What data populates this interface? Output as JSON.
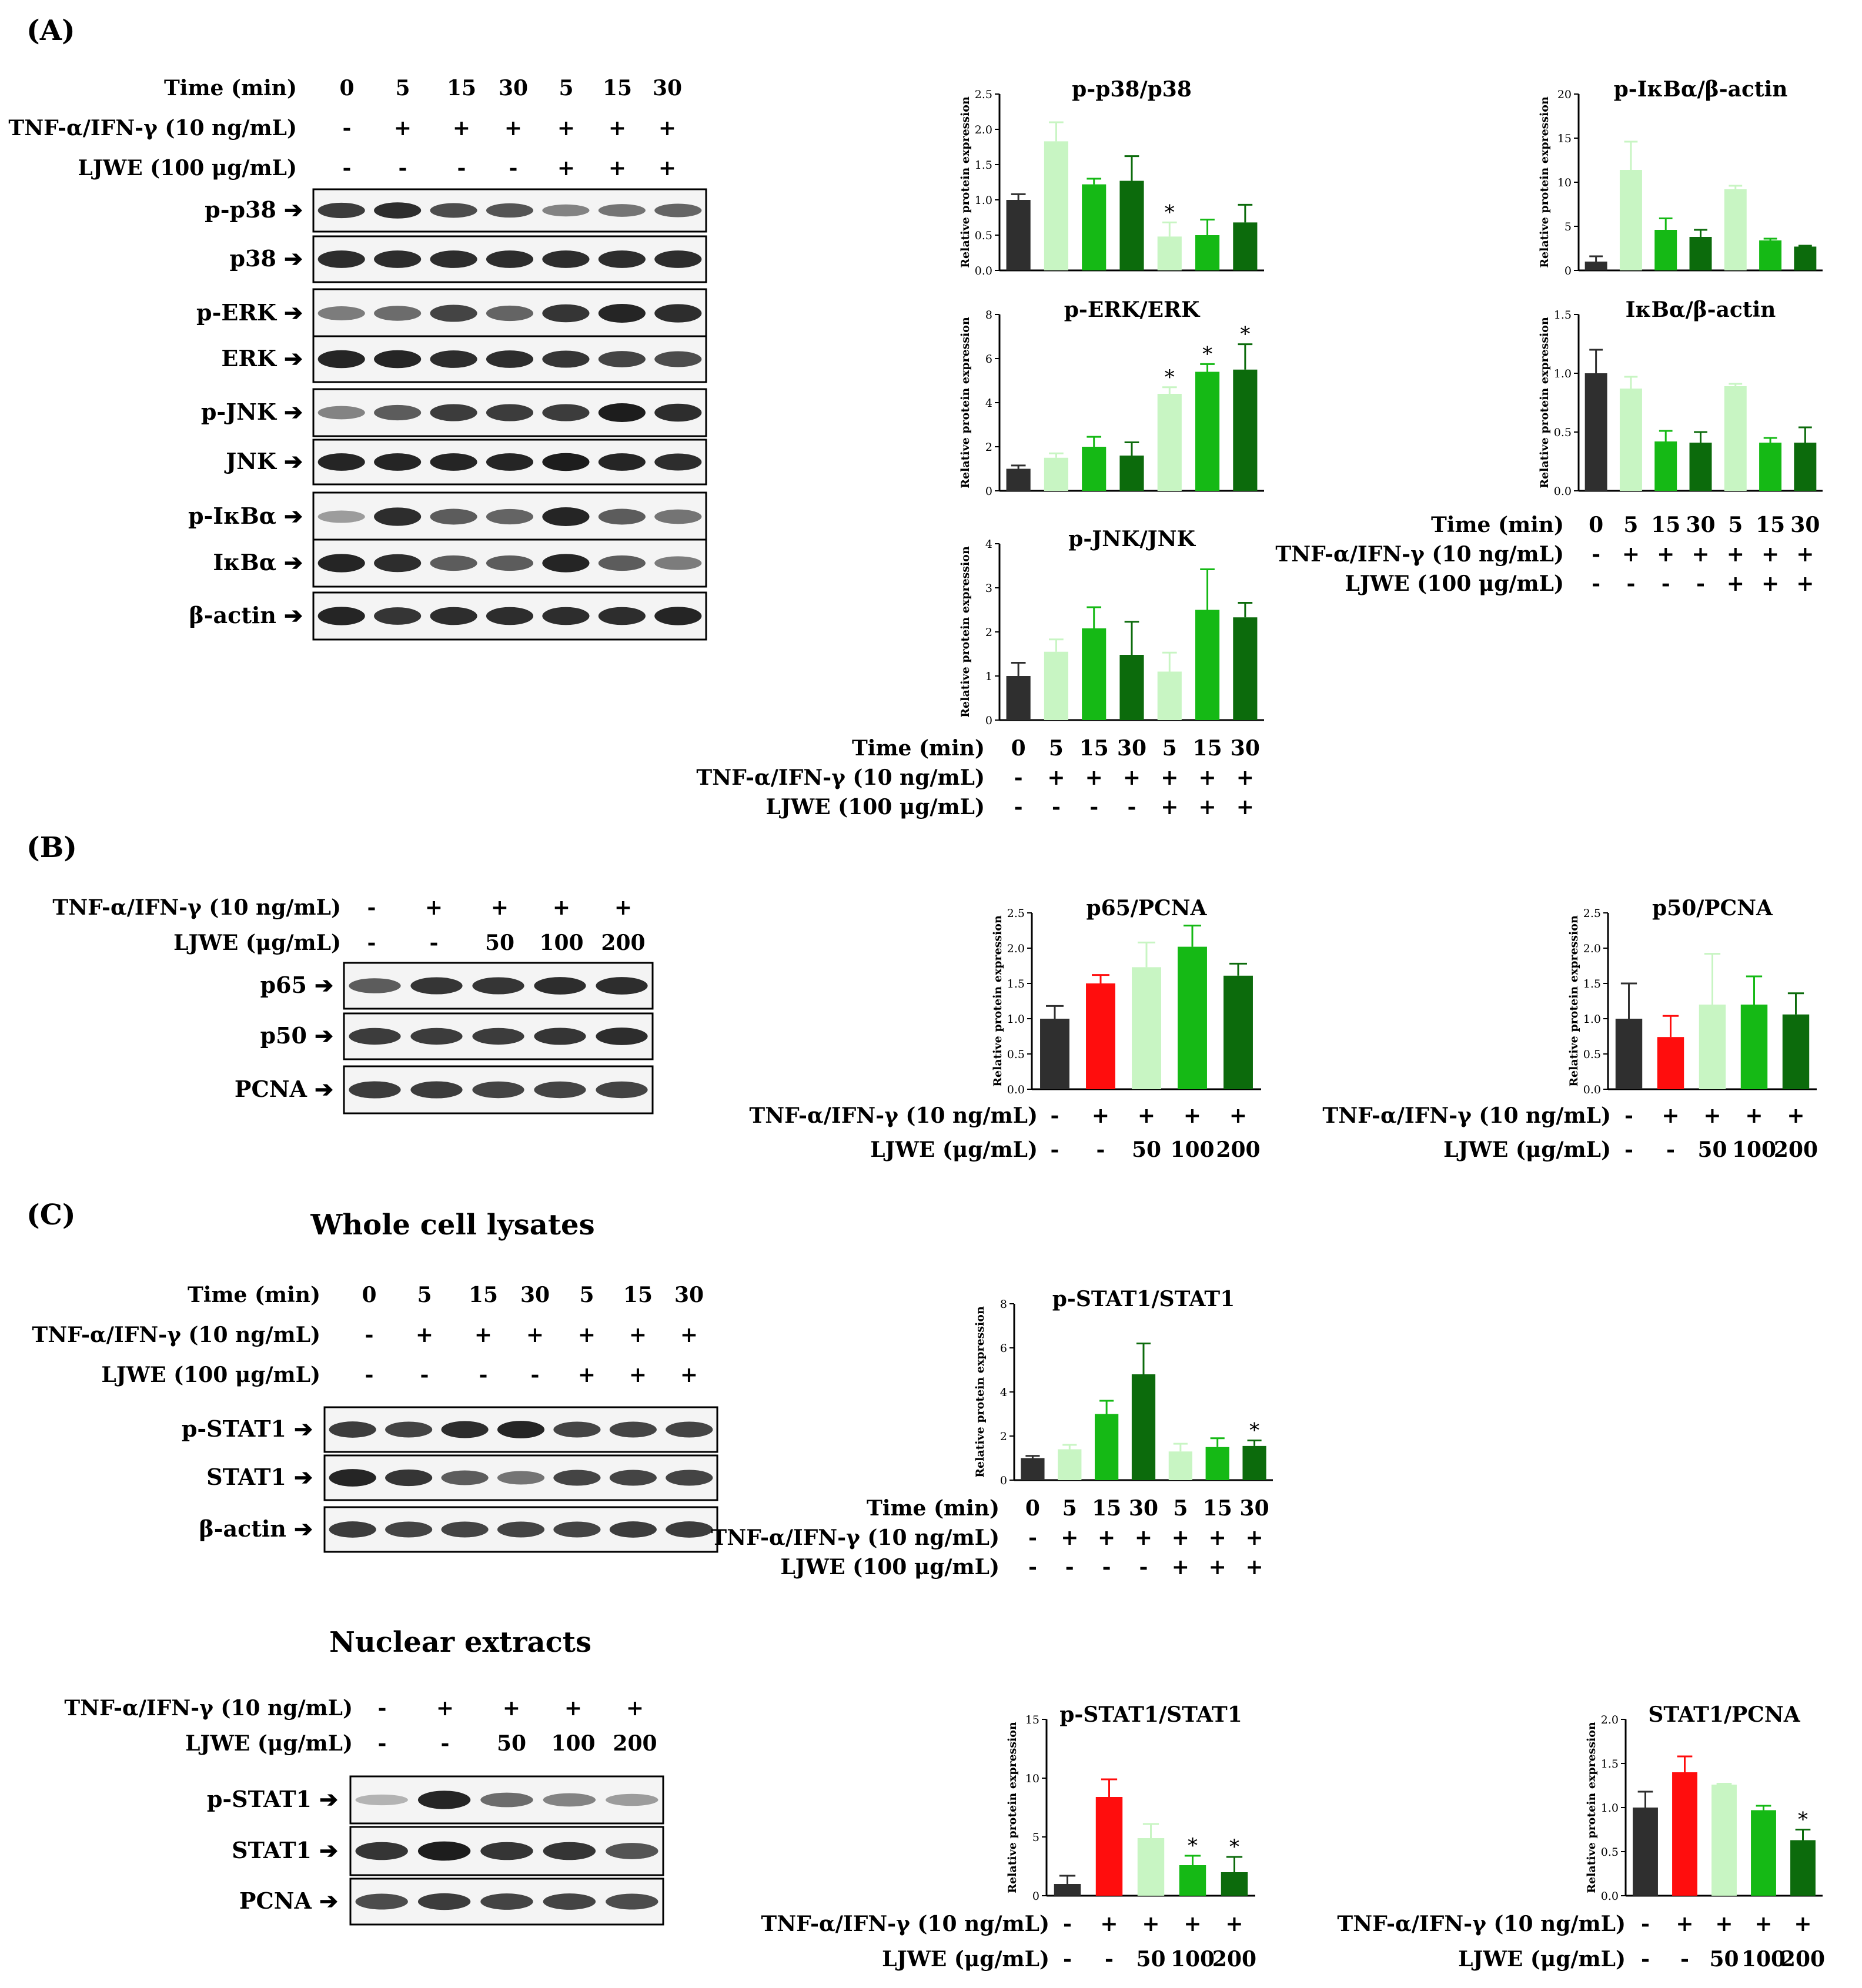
{
  "colors": {
    "c0": "#2f2f2f",
    "c5": "#c8f5c3",
    "c15": "#15b915",
    "c30": "#0c6b0c",
    "red": "#ff0d0d",
    "c50": "#c8f5c3",
    "c100": "#15b915",
    "c200": "#0c6b0c"
  },
  "panels": {
    "A": "(A)",
    "B": "(B)",
    "C": "(C)"
  },
  "titles": {
    "whole": "Whole cell lysates",
    "nuclear": "Nuclear extracts"
  },
  "ylabel": "Relative protein expression",
  "conditions": {
    "time": {
      "label": "Time (min)",
      "vals": [
        "0",
        "5",
        "15",
        "30",
        "5",
        "15",
        "30"
      ]
    },
    "tnf7": {
      "label": "TNF-α/IFN-γ (10 ng/mL)",
      "vals": [
        "-",
        "+",
        "+",
        "+",
        "+",
        "+",
        "+"
      ]
    },
    "ljwe7": {
      "label": "LJWE (100 μg/mL)",
      "vals": [
        "-",
        "-",
        "-",
        "-",
        "+",
        "+",
        "+"
      ]
    },
    "tnf5": {
      "label": "TNF-α/IFN-γ (10 ng/mL)",
      "vals": [
        "-",
        "+",
        "+",
        "+",
        "+"
      ]
    },
    "ljwe5": {
      "label": "LJWE (μg/mL)",
      "vals": [
        "-",
        "-",
        "50",
        "100",
        "200"
      ]
    }
  },
  "blots": {
    "A": [
      "p-p38",
      "p38",
      "p-ERK",
      "ERK",
      "p-JNK",
      "JNK",
      "p-IκBα",
      "IκBα",
      "β-actin"
    ],
    "B": [
      "p65",
      "p50",
      "PCNA"
    ],
    "Cw": [
      "p-STAT1",
      "STAT1",
      "β-actin"
    ],
    "Cn": [
      "p-STAT1",
      "STAT1",
      "PCNA"
    ]
  },
  "chart_data": [
    {
      "id": "pp38",
      "type": "bar",
      "title": "p-p38/p38",
      "ylabel": "Relative protein expression",
      "ylim": [
        0,
        2.5
      ],
      "ticks": [
        "0.0",
        "0.5",
        "1.0",
        "1.5",
        "2.0",
        "2.5"
      ],
      "values": [
        1.0,
        1.83,
        1.22,
        1.27,
        0.48,
        0.5,
        0.68
      ],
      "errors": [
        0.08,
        0.27,
        0.08,
        0.35,
        0.2,
        0.22,
        0.25
      ],
      "sig": [
        false,
        false,
        false,
        false,
        true,
        false,
        false
      ],
      "colors": [
        "c0",
        "c5",
        "c15",
        "c30",
        "c5",
        "c15",
        "c30"
      ]
    },
    {
      "id": "pikb",
      "type": "bar",
      "title": "p-IκBα/β-actin",
      "ylabel": "Relative protein expression",
      "ylim": [
        0,
        20
      ],
      "ticks": [
        "0",
        "5",
        "10",
        "15",
        "20"
      ],
      "values": [
        1.0,
        11.4,
        4.6,
        3.8,
        9.2,
        3.4,
        2.7
      ],
      "errors": [
        0.6,
        3.2,
        1.3,
        0.8,
        0.4,
        0.2,
        0.1
      ],
      "sig": [
        false,
        false,
        false,
        false,
        false,
        false,
        false
      ],
      "colors": [
        "c0",
        "c5",
        "c15",
        "c30",
        "c5",
        "c15",
        "c30"
      ]
    },
    {
      "id": "perk",
      "type": "bar",
      "title": "p-ERK/ERK",
      "ylabel": "Relative protein expression",
      "ylim": [
        0,
        8
      ],
      "ticks": [
        "0",
        "2",
        "4",
        "6",
        "8"
      ],
      "values": [
        1.0,
        1.5,
        2.0,
        1.6,
        4.4,
        5.4,
        5.5
      ],
      "errors": [
        0.15,
        0.2,
        0.45,
        0.6,
        0.3,
        0.35,
        1.15
      ],
      "sig": [
        false,
        false,
        false,
        false,
        true,
        true,
        true
      ],
      "colors": [
        "c0",
        "c5",
        "c15",
        "c30",
        "c5",
        "c15",
        "c30"
      ]
    },
    {
      "id": "ikb",
      "type": "bar",
      "title": "IκBα/β-actin",
      "ylabel": "Relative protein expression",
      "ylim": [
        0,
        1.5
      ],
      "ticks": [
        "0.0",
        "0.5",
        "1.0",
        "1.5"
      ],
      "values": [
        1.0,
        0.87,
        0.42,
        0.41,
        0.89,
        0.41,
        0.41
      ],
      "errors": [
        0.2,
        0.1,
        0.09,
        0.09,
        0.02,
        0.04,
        0.13
      ],
      "sig": [
        false,
        false,
        false,
        false,
        false,
        false,
        false
      ],
      "colors": [
        "c0",
        "c5",
        "c15",
        "c30",
        "c5",
        "c15",
        "c30"
      ]
    },
    {
      "id": "pjnk",
      "type": "bar",
      "title": "p-JNK/JNK",
      "ylabel": "Relative protein expression",
      "ylim": [
        0,
        4
      ],
      "ticks": [
        "0",
        "1",
        "2",
        "3",
        "4"
      ],
      "values": [
        1.0,
        1.55,
        2.08,
        1.48,
        1.1,
        2.5,
        2.33
      ],
      "errors": [
        0.3,
        0.28,
        0.48,
        0.75,
        0.43,
        0.92,
        0.33
      ],
      "sig": [
        false,
        false,
        false,
        false,
        false,
        false,
        false
      ],
      "colors": [
        "c0",
        "c5",
        "c15",
        "c30",
        "c5",
        "c15",
        "c30"
      ]
    },
    {
      "id": "p65",
      "type": "bar",
      "title": "p65/PCNA",
      "ylabel": "Relative protein expression",
      "ylim": [
        0,
        2.5
      ],
      "ticks": [
        "0.0",
        "0.5",
        "1.0",
        "1.5",
        "2.0",
        "2.5"
      ],
      "values": [
        1.0,
        1.5,
        1.73,
        2.02,
        1.61
      ],
      "errors": [
        0.18,
        0.12,
        0.35,
        0.3,
        0.17
      ],
      "sig": [
        false,
        false,
        false,
        false,
        false
      ],
      "colors": [
        "c0",
        "red",
        "c50",
        "c100",
        "c200"
      ]
    },
    {
      "id": "p50",
      "type": "bar",
      "title": "p50/PCNA",
      "ylabel": "Relative protein expression",
      "ylim": [
        0,
        2.5
      ],
      "ticks": [
        "0.0",
        "0.5",
        "1.0",
        "1.5",
        "2.0",
        "2.5"
      ],
      "values": [
        1.0,
        0.74,
        1.2,
        1.2,
        1.06
      ],
      "errors": [
        0.5,
        0.3,
        0.72,
        0.4,
        0.3
      ],
      "sig": [
        false,
        false,
        false,
        false,
        false
      ],
      "colors": [
        "c0",
        "red",
        "c50",
        "c100",
        "c200"
      ]
    },
    {
      "id": "pstatw",
      "type": "bar",
      "title": "p-STAT1/STAT1",
      "ylabel": "Relative protein expression",
      "ylim": [
        0,
        8
      ],
      "ticks": [
        "0",
        "2",
        "4",
        "6",
        "8"
      ],
      "values": [
        1.0,
        1.4,
        3.0,
        4.8,
        1.3,
        1.5,
        1.55
      ],
      "errors": [
        0.1,
        0.2,
        0.6,
        1.4,
        0.35,
        0.4,
        0.25
      ],
      "sig": [
        false,
        false,
        false,
        false,
        false,
        false,
        true
      ],
      "colors": [
        "c0",
        "c5",
        "c15",
        "c30",
        "c5",
        "c15",
        "c30"
      ]
    },
    {
      "id": "pstatn",
      "type": "bar",
      "title": "p-STAT1/STAT1",
      "ylabel": "Relative protein expression",
      "ylim": [
        0,
        15
      ],
      "ticks": [
        "0",
        "5",
        "10",
        "15"
      ],
      "values": [
        1.0,
        8.4,
        4.9,
        2.6,
        2.0
      ],
      "errors": [
        0.7,
        1.5,
        1.2,
        0.8,
        1.3
      ],
      "sig": [
        false,
        false,
        false,
        true,
        true
      ],
      "colors": [
        "c0",
        "red",
        "c50",
        "c100",
        "c200"
      ]
    },
    {
      "id": "stat1n",
      "type": "bar",
      "title": "STAT1/PCNA",
      "ylabel": "Relative protein expression",
      "ylim": [
        0,
        2.0
      ],
      "ticks": [
        "0.0",
        "0.5",
        "1.0",
        "1.5",
        "2.0"
      ],
      "values": [
        1.0,
        1.4,
        1.26,
        0.97,
        0.63
      ],
      "errors": [
        0.18,
        0.18,
        0.01,
        0.05,
        0.12
      ],
      "sig": [
        false,
        false,
        false,
        false,
        true
      ],
      "colors": [
        "c0",
        "red",
        "c50",
        "c100",
        "c200"
      ]
    }
  ]
}
